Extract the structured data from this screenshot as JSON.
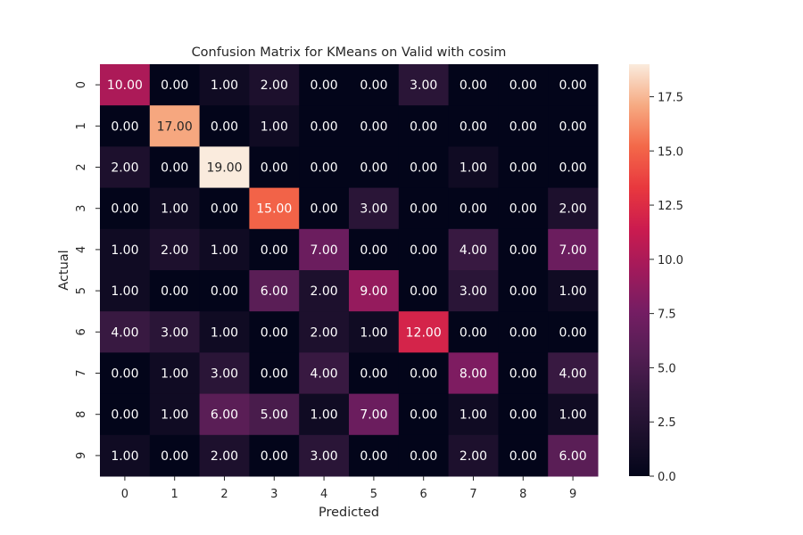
{
  "chart_data": {
    "type": "heatmap",
    "title": "Confusion Matrix for KMeans on Valid with cosim",
    "xlabel": "Predicted",
    "ylabel": "Actual",
    "x_categories": [
      "0",
      "1",
      "2",
      "3",
      "4",
      "5",
      "6",
      "7",
      "8",
      "9"
    ],
    "y_categories": [
      "0",
      "1",
      "2",
      "3",
      "4",
      "5",
      "6",
      "7",
      "8",
      "9"
    ],
    "values": [
      [
        10,
        0,
        1,
        2,
        0,
        0,
        3,
        0,
        0,
        0
      ],
      [
        0,
        17,
        0,
        1,
        0,
        0,
        0,
        0,
        0,
        0
      ],
      [
        2,
        0,
        19,
        0,
        0,
        0,
        0,
        1,
        0,
        0
      ],
      [
        0,
        1,
        0,
        15,
        0,
        3,
        0,
        0,
        0,
        2
      ],
      [
        1,
        2,
        1,
        0,
        7,
        0,
        0,
        4,
        0,
        7
      ],
      [
        1,
        0,
        0,
        6,
        2,
        9,
        0,
        3,
        0,
        1
      ],
      [
        4,
        3,
        1,
        0,
        2,
        1,
        12,
        0,
        0,
        0
      ],
      [
        0,
        1,
        3,
        0,
        4,
        0,
        0,
        8,
        0,
        4
      ],
      [
        0,
        1,
        6,
        5,
        1,
        7,
        0,
        1,
        0,
        1
      ],
      [
        1,
        0,
        2,
        0,
        3,
        0,
        0,
        2,
        0,
        6
      ]
    ],
    "cell_labels": [
      [
        "10.00",
        "0.00",
        "1.00",
        "2.00",
        "0.00",
        "0.00",
        "3.00",
        "0.00",
        "0.00",
        "0.00"
      ],
      [
        "0.00",
        "17.00",
        "0.00",
        "1.00",
        "0.00",
        "0.00",
        "0.00",
        "0.00",
        "0.00",
        "0.00"
      ],
      [
        "2.00",
        "0.00",
        "19.00",
        "0.00",
        "0.00",
        "0.00",
        "0.00",
        "1.00",
        "0.00",
        "0.00"
      ],
      [
        "0.00",
        "1.00",
        "0.00",
        "15.00",
        "0.00",
        "3.00",
        "0.00",
        "0.00",
        "0.00",
        "2.00"
      ],
      [
        "1.00",
        "2.00",
        "1.00",
        "0.00",
        "7.00",
        "0.00",
        "0.00",
        "4.00",
        "0.00",
        "7.00"
      ],
      [
        "1.00",
        "0.00",
        "0.00",
        "6.00",
        "2.00",
        "9.00",
        "0.00",
        "3.00",
        "0.00",
        "1.00"
      ],
      [
        "4.00",
        "3.00",
        "1.00",
        "0.00",
        "2.00",
        "1.00",
        "12.00",
        "0.00",
        "0.00",
        "0.00"
      ],
      [
        "0.00",
        "1.00",
        "3.00",
        "0.00",
        "4.00",
        "0.00",
        "0.00",
        "8.00",
        "0.00",
        "4.00"
      ],
      [
        "0.00",
        "1.00",
        "6.00",
        "5.00",
        "1.00",
        "7.00",
        "0.00",
        "1.00",
        "0.00",
        "1.00"
      ],
      [
        "1.00",
        "0.00",
        "2.00",
        "0.00",
        "3.00",
        "0.00",
        "0.00",
        "2.00",
        "0.00",
        "6.00"
      ]
    ],
    "colormap": "rocket",
    "vmin": 0,
    "vmax": 19,
    "colorbar_ticks": [
      0.0,
      2.5,
      5.0,
      7.5,
      10.0,
      12.5,
      15.0,
      17.5
    ],
    "colorbar_tick_labels": [
      "0.0",
      "2.5",
      "5.0",
      "7.5",
      "10.0",
      "12.5",
      "15.0",
      "17.5"
    ],
    "grid": false,
    "colorbar_position": "right"
  }
}
